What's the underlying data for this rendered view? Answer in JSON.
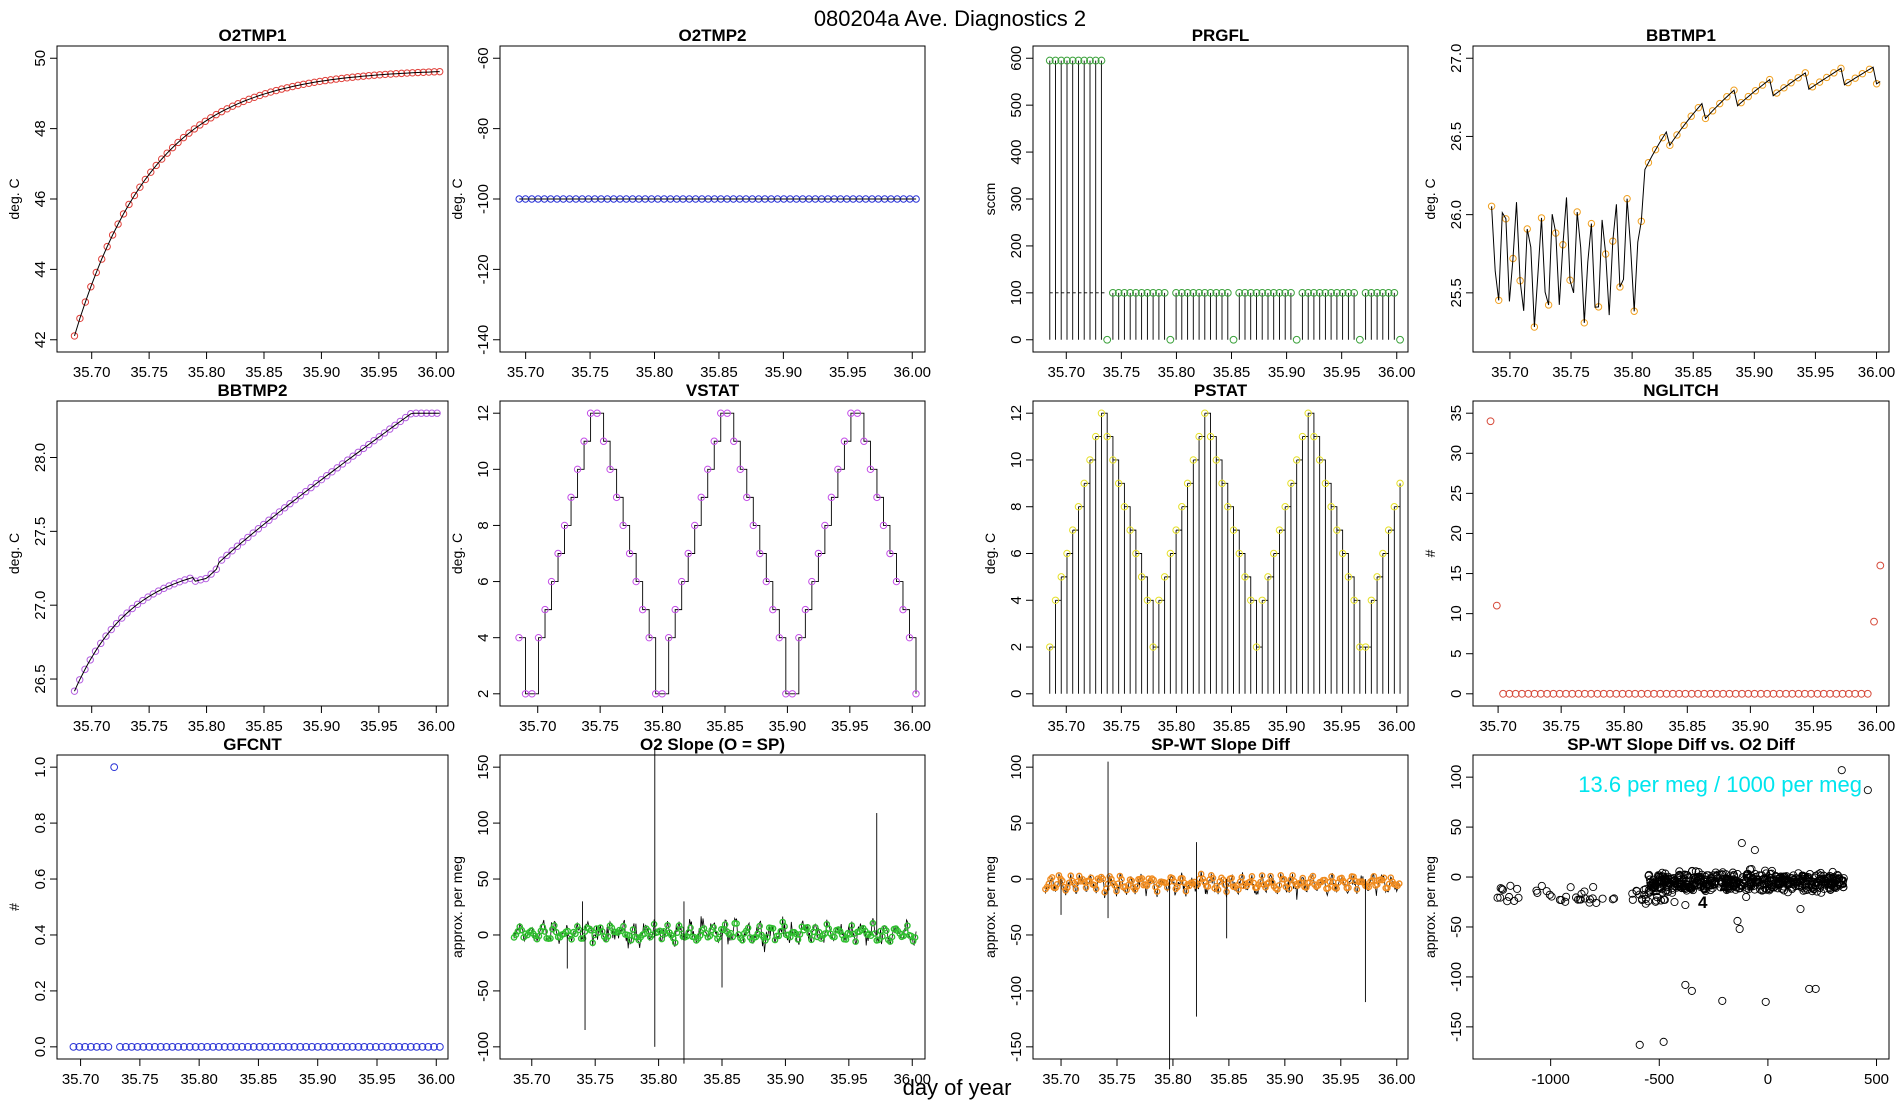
{
  "figure": {
    "title": "080204a   Ave. Diagnostics 2",
    "xlabel": "day of year"
  },
  "chart_data": [
    {
      "type": "line",
      "title": "O2TMP1",
      "ylabel": "deg. C",
      "xlim": [
        35.68,
        36.0
      ],
      "ylim": [
        42,
        50
      ],
      "xticks": [
        "35.70",
        "35.75",
        "35.80",
        "35.85",
        "35.90",
        "35.95",
        "36.00"
      ],
      "yticks": [
        "42",
        "44",
        "46",
        "48",
        "50"
      ],
      "line_color": "#000000",
      "point_color": "#e0403a",
      "model": {
        "kind": "sat",
        "a": 42.0,
        "b": 49.7,
        "k": 0.07
      },
      "n_points": 68
    },
    {
      "type": "scatter",
      "title": "O2TMP2",
      "ylabel": "deg. C",
      "xlim": [
        35.69,
        36.0
      ],
      "ylim": [
        -140,
        -60
      ],
      "xticks": [
        "35.70",
        "35.75",
        "35.80",
        "35.85",
        "35.90",
        "35.95",
        "36.00"
      ],
      "yticks": [
        "-140",
        "-120",
        "-100",
        "-80",
        "-60"
      ],
      "point_color": "#2a33d6",
      "model": {
        "kind": "const",
        "v": -100
      },
      "n_points": 64
    },
    {
      "type": "step",
      "title": "PRGFL",
      "ylabel": "sccm",
      "xlim": [
        35.68,
        36.0
      ],
      "ylim": [
        0,
        600
      ],
      "xticks": [
        "35.70",
        "35.75",
        "35.80",
        "35.85",
        "35.90",
        "35.95",
        "36.00"
      ],
      "yticks": [
        "0",
        "100",
        "200",
        "300",
        "400",
        "500",
        "600"
      ],
      "line_color": "#000000",
      "point_color": "#3aa13a",
      "model": {
        "kind": "prgfl",
        "high": 595,
        "low": 100,
        "switch": 35.733
      },
      "n_points": 62
    },
    {
      "type": "line",
      "title": "BBTMP1",
      "ylabel": "deg. C",
      "xlim": [
        35.68,
        36.0
      ],
      "ylim": [
        25.2,
        27.0
      ],
      "xticks": [
        "35.70",
        "35.75",
        "35.80",
        "35.85",
        "35.90",
        "35.95",
        "36.00"
      ],
      "yticks": [
        "25.5",
        "26.0",
        "26.5",
        "27.0"
      ],
      "line_color": "#000000",
      "point_color": "#f0a020",
      "model": {
        "kind": "bbtmp1"
      },
      "n_points": 110
    },
    {
      "type": "line",
      "title": "BBTMP2",
      "ylabel": "deg. C",
      "xlim": [
        35.68,
        36.0
      ],
      "ylim": [
        26.4,
        28.3
      ],
      "xticks": [
        "35.70",
        "35.75",
        "35.80",
        "35.85",
        "35.90",
        "35.95",
        "36.00"
      ],
      "yticks": [
        "26.5",
        "27.0",
        "27.5",
        "28.0"
      ],
      "line_color": "#000000",
      "point_color": "#b45ee0",
      "model": {
        "kind": "bbtmp2"
      },
      "n_points": 140
    },
    {
      "type": "step",
      "title": "VSTAT",
      "ylabel": "deg. C",
      "xlim": [
        35.68,
        36.0
      ],
      "ylim": [
        2,
        12
      ],
      "xticks": [
        "35.70",
        "35.75",
        "35.80",
        "35.85",
        "35.90",
        "35.95",
        "36.00"
      ],
      "yticks": [
        "2",
        "4",
        "6",
        "8",
        "10",
        "12"
      ],
      "line_color": "#000000",
      "point_color": "#c44fe8",
      "model": {
        "kind": "vstat",
        "seq": [
          4,
          2,
          2,
          4,
          5,
          6,
          7,
          8,
          9,
          10,
          11,
          12,
          12,
          11,
          10,
          9,
          8,
          7,
          6,
          5,
          4,
          2,
          2,
          4,
          5,
          6,
          7,
          8,
          9,
          10,
          11,
          12,
          12,
          11,
          10,
          9,
          8,
          7,
          6,
          5,
          4,
          2,
          2,
          4,
          5,
          6,
          7,
          8,
          9,
          10,
          11,
          12,
          12,
          11,
          10,
          9,
          8,
          7,
          6,
          5,
          4,
          2
        ]
      },
      "n_points": 62
    },
    {
      "type": "step",
      "title": "PSTAT",
      "ylabel": "deg. C",
      "xlim": [
        35.68,
        36.0
      ],
      "ylim": [
        0,
        12
      ],
      "xticks": [
        "35.70",
        "35.75",
        "35.80",
        "35.85",
        "35.90",
        "35.95",
        "36.00"
      ],
      "yticks": [
        "0",
        "2",
        "4",
        "6",
        "8",
        "10",
        "12"
      ],
      "line_color": "#000000",
      "point_color": "#e6e02a",
      "model": {
        "kind": "pstat",
        "seq": [
          2,
          4,
          5,
          6,
          7,
          8,
          9,
          10,
          11,
          12,
          11,
          10,
          9,
          8,
          7,
          6,
          5,
          4,
          2,
          4,
          5,
          6,
          7,
          8,
          9,
          10,
          11,
          12,
          11,
          10,
          9,
          8,
          7,
          6,
          5,
          4,
          2,
          4,
          5,
          6,
          7,
          8,
          9,
          10,
          11,
          12,
          11,
          10,
          9,
          8,
          7,
          6,
          5,
          4,
          2
        ]
      },
      "n_points": 62
    },
    {
      "type": "scatter",
      "title": "NGLITCH",
      "ylabel": "#",
      "xlim": [
        35.69,
        36.0
      ],
      "ylim": [
        0,
        35
      ],
      "xticks": [
        "35.70",
        "35.75",
        "35.80",
        "35.85",
        "35.90",
        "35.95",
        "36.00"
      ],
      "yticks": [
        "0",
        "5",
        "10",
        "15",
        "20",
        "25",
        "30",
        "35"
      ],
      "point_color": "#d64a3a",
      "model": {
        "kind": "nglitch",
        "spikes": [
          [
            0,
            34
          ],
          [
            1,
            11
          ],
          [
            61,
            9
          ],
          [
            62,
            16
          ]
        ]
      },
      "n_points": 63
    },
    {
      "type": "scatter",
      "title": "GFCNT",
      "ylabel": "#",
      "xlim": [
        35.69,
        36.0
      ],
      "ylim": [
        0,
        1
      ],
      "xticks": [
        "35.70",
        "35.75",
        "35.80",
        "35.85",
        "35.90",
        "35.95",
        "36.00"
      ],
      "yticks": [
        "0.0",
        "0.2",
        "0.4",
        "0.6",
        "0.8",
        "1.0"
      ],
      "point_color": "#2a33d6",
      "model": {
        "kind": "gfcnt",
        "spikes": [
          [
            7,
            1
          ]
        ]
      },
      "n_points": 64
    },
    {
      "type": "line",
      "title": "O2 Slope (O = SP)",
      "ylabel": "approx. per meg",
      "xlim": [
        35.685,
        36.0
      ],
      "ylim": [
        -100,
        150
      ],
      "xticks": [
        "35.70",
        "35.75",
        "35.80",
        "35.85",
        "35.90",
        "35.95",
        "36.00"
      ],
      "yticks": [
        "-100",
        "-50",
        "0",
        "50",
        "100",
        "150"
      ],
      "line_color": "#000000",
      "point_color": "#2fbf2f",
      "model": {
        "kind": "noise",
        "base": 2,
        "amp": 6,
        "jit": 8,
        "spikes": [
          [
            35.742,
            -85
          ],
          [
            35.74,
            30
          ],
          [
            35.797,
            168
          ],
          [
            35.797,
            -100
          ],
          [
            35.82,
            -115
          ],
          [
            35.82,
            30
          ],
          [
            35.85,
            -47
          ],
          [
            35.972,
            109
          ],
          [
            35.728,
            -30
          ]
        ]
      },
      "n_points": 420
    },
    {
      "type": "line",
      "title": "SP-WT Slope Diff",
      "ylabel": "approx. per meg",
      "xlim": [
        35.685,
        36.0
      ],
      "ylim": [
        -150,
        100
      ],
      "xticks": [
        "35.70",
        "35.75",
        "35.80",
        "35.85",
        "35.90",
        "35.95",
        "36.00"
      ],
      "yticks": [
        "-150",
        "-100",
        "-50",
        "0",
        "50",
        "100"
      ],
      "line_color": "#000000",
      "point_color": "#f08b1e",
      "model": {
        "kind": "noise",
        "base": -5,
        "amp": 6,
        "jit": 6,
        "spikes": [
          [
            35.742,
            105
          ],
          [
            35.742,
            -35
          ],
          [
            35.797,
            -170
          ],
          [
            35.821,
            33
          ],
          [
            35.821,
            -123
          ],
          [
            35.848,
            -53
          ],
          [
            35.972,
            -110
          ],
          [
            35.7,
            -32
          ]
        ]
      },
      "n_points": 420
    },
    {
      "type": "scatter",
      "title": "SP-WT Slope Diff vs. O2 Diff",
      "ylabel": "approx. per meg",
      "xlim": [
        -1300,
        500
      ],
      "ylim": [
        -170,
        110
      ],
      "xticks": [
        "-1000",
        "-500",
        "0",
        "500"
      ],
      "yticks": [
        "-150",
        "-100",
        "-50",
        "0",
        "50",
        "100"
      ],
      "point_color": "#000000",
      "label_color": "#00e5ee",
      "annotation": "13.6 per meg / 1000 per meg",
      "outliers": [
        [
          -590,
          -168
        ],
        [
          -480,
          -165
        ],
        [
          -380,
          -108
        ],
        [
          -350,
          -114
        ],
        [
          -210,
          -124
        ],
        [
          -10,
          -125
        ],
        [
          190,
          -112
        ],
        [
          220,
          -112
        ],
        [
          -120,
          34
        ],
        [
          -60,
          27
        ],
        [
          340,
          107
        ],
        [
          460,
          87
        ],
        [
          -140,
          -44
        ],
        [
          -130,
          -52
        ],
        [
          150,
          -32
        ],
        [
          -430,
          -25
        ],
        [
          -380,
          -28
        ],
        [
          -100,
          -20
        ]
      ],
      "labels": [
        {
          "text": "2",
          "x": -520,
          "y": -12
        },
        {
          "text": "4",
          "x": -300,
          "y": -25
        },
        {
          "text": "6",
          "x": -295,
          "y": -10
        },
        {
          "text": "4",
          "x": -200,
          "y": -10
        },
        {
          "text": "7",
          "x": -70,
          "y": -7
        },
        {
          "text": "0",
          "x": 50,
          "y": -6
        },
        {
          "text": "0",
          "x": 95,
          "y": -5
        },
        {
          "text": "9",
          "x": 160,
          "y": 0
        },
        {
          "text": "3",
          "x": 345,
          "y": -5
        }
      ],
      "n_points": 560
    }
  ]
}
